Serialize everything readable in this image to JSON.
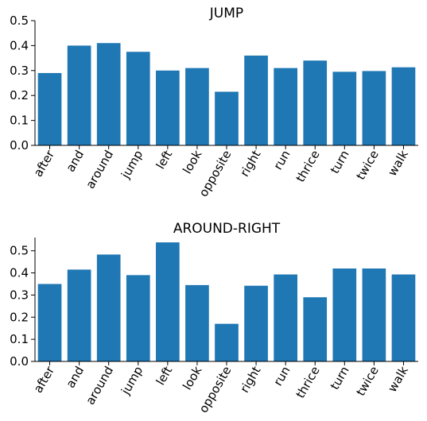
{
  "chart_data": [
    {
      "type": "bar",
      "title": "JUMP",
      "xlabel": "",
      "ylabel": "",
      "categories": [
        "after",
        "and",
        "around",
        "jump",
        "left",
        "look",
        "opposite",
        "right",
        "run",
        "thrice",
        "turn",
        "twice",
        "walk"
      ],
      "values": [
        0.29,
        0.4,
        0.41,
        0.375,
        0.3,
        0.31,
        0.215,
        0.36,
        0.31,
        0.34,
        0.295,
        0.298,
        0.313
      ],
      "ylim": [
        0,
        0.5
      ],
      "yticks": [
        "0.0",
        "0.1",
        "0.2",
        "0.3",
        "0.4",
        "0.5"
      ],
      "bar_color": "#1f77b4",
      "grid": false
    },
    {
      "type": "bar",
      "title": "AROUND-RIGHT",
      "xlabel": "",
      "ylabel": "",
      "categories": [
        "after",
        "and",
        "around",
        "jump",
        "left",
        "look",
        "opposite",
        "right",
        "run",
        "thrice",
        "turn",
        "twice",
        "walk"
      ],
      "values": [
        0.35,
        0.415,
        0.483,
        0.39,
        0.538,
        0.345,
        0.17,
        0.342,
        0.393,
        0.29,
        0.42,
        0.42,
        0.393
      ],
      "ylim": [
        0,
        0.56
      ],
      "yticks": [
        "0.0",
        "0.1",
        "0.2",
        "0.3",
        "0.4",
        "0.5"
      ],
      "bar_color": "#1f77b4",
      "grid": false
    }
  ]
}
